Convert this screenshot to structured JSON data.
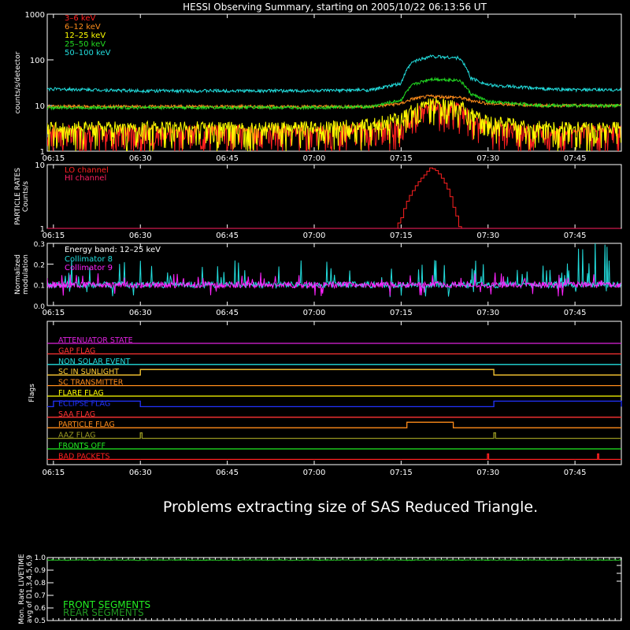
{
  "title": "HESSI Observing Summary, starting on 2005/10/22 06:13:56 UT",
  "time_ticks": [
    "06:15",
    "06:30",
    "06:45",
    "07:00",
    "07:15",
    "07:30",
    "07:45"
  ],
  "message": "Problems extracting size of SAS Reduced Triangle.",
  "chart_data": [
    {
      "type": "line",
      "panel": "lightcurves",
      "ylabel": "counts/s/detector",
      "yscale": "log",
      "ylim": [
        1,
        1000
      ],
      "ytick_labels": [
        "1",
        "10",
        "100",
        "1000"
      ],
      "x": [
        "06:15",
        "06:30",
        "06:45",
        "07:00",
        "07:10",
        "07:15",
        "07:17",
        "07:20",
        "07:25",
        "07:27",
        "07:30",
        "07:40",
        "07:45",
        "07:52"
      ],
      "series": [
        {
          "name": "3–6 keV",
          "color": "#ff2020",
          "values": [
            2.5,
            2.5,
            2.5,
            2.5,
            2.8,
            3.5,
            5.5,
            9,
            8,
            5,
            3,
            2.5,
            2.5,
            2.5
          ]
        },
        {
          "name": "6–12 keV",
          "color": "#ff8c1a",
          "values": [
            9.5,
            9.5,
            9.5,
            9.5,
            9.5,
            11,
            14,
            16,
            15,
            13,
            11,
            10,
            10,
            10
          ]
        },
        {
          "name": "12–25 keV",
          "color": "#ffff00",
          "values": [
            3,
            3,
            3,
            3,
            3.5,
            5,
            8,
            10,
            9,
            6,
            4,
            3,
            3,
            3
          ]
        },
        {
          "name": "25–50 keV",
          "color": "#22dd22",
          "values": [
            9,
            9,
            9,
            9,
            9.5,
            13,
            28,
            38,
            36,
            18,
            12,
            10,
            10,
            10
          ]
        },
        {
          "name": "50–100 keV",
          "color": "#22dddd",
          "values": [
            23,
            21,
            21,
            21,
            22,
            30,
            90,
            120,
            110,
            40,
            28,
            23,
            22,
            22
          ]
        }
      ]
    },
    {
      "type": "line",
      "panel": "particle_rates",
      "ylabel": "PARTICLE RATES\nCounts/s",
      "yscale": "log",
      "ylim": [
        1,
        10
      ],
      "ytick_labels": [
        "1",
        "10"
      ],
      "x": [
        "06:15",
        "07:14",
        "07:15",
        "07:17",
        "07:19",
        "07:20",
        "07:21",
        "07:23",
        "07:24",
        "07:25",
        "07:52"
      ],
      "series": [
        {
          "name": "LO channel",
          "color": "#ff2020",
          "values": [
            1,
            1,
            1.5,
            4,
            7,
            9,
            8,
            4,
            2,
            1,
            1
          ]
        },
        {
          "name": "HI channel",
          "color": "#ff2060",
          "values": [
            1,
            1,
            1,
            1,
            1,
            1,
            1,
            1,
            1,
            1,
            1
          ]
        }
      ]
    },
    {
      "type": "line",
      "panel": "modulation",
      "ylabel": "Normalized\nmodulation",
      "ylim": [
        0,
        0.3
      ],
      "ytick_labels": [
        "0.0",
        "0.1",
        "0.2",
        "0.3"
      ],
      "annotation": "Energy band: 12–25 keV",
      "series": [
        {
          "name": "Collimator 8",
          "color": "#22dddd",
          "typical": 0.1
        },
        {
          "name": "Collimator 9",
          "color": "#ff22ff",
          "typical": 0.1
        }
      ]
    },
    {
      "type": "line",
      "panel": "flags",
      "ylabel": "Flags",
      "series": [
        {
          "name": "ATTENUATOR STATE",
          "color": "#dd22dd",
          "intervals": []
        },
        {
          "name": "GAP FLAG",
          "color": "#ff3333",
          "intervals": []
        },
        {
          "name": "NON SOLAR EVENT",
          "color": "#22dddd",
          "intervals": []
        },
        {
          "name": "SC IN SUNLIGHT",
          "color": "#ffcc33",
          "intervals": [
            [
              "06:30",
              "07:31"
            ]
          ]
        },
        {
          "name": "SC TRANSMITTER",
          "color": "#ff8c1a",
          "intervals": []
        },
        {
          "name": "FLARE FLAG",
          "color": "#ffff00",
          "intervals": []
        },
        {
          "name": "ECLIPSE FLAG",
          "color": "#2233ff",
          "intervals": [
            [
              "06:15",
              "06:30"
            ],
            [
              "07:31",
              "07:53"
            ]
          ]
        },
        {
          "name": "SAA FLAG",
          "color": "#ff3333",
          "intervals": []
        },
        {
          "name": "PARTICLE FLAG",
          "color": "#ff8c1a",
          "intervals": [
            [
              "07:16",
              "07:24"
            ]
          ]
        },
        {
          "name": "AAZ FLAG",
          "color": "#999922",
          "intervals": [
            [
              "06:30",
              "06:30.3"
            ],
            [
              "07:31",
              "07:31.3"
            ]
          ]
        },
        {
          "name": "FRONTS OFF",
          "color": "#22ee22",
          "intervals": []
        },
        {
          "name": "BAD PACKETS",
          "color": "#ff2020",
          "intervals": [
            [
              "07:29.9",
              "07:30.1"
            ],
            [
              "07:48.9",
              "07:49.1"
            ]
          ]
        }
      ]
    },
    {
      "type": "line",
      "panel": "livetime",
      "ylabel": "Mon. Rate LIVETIME\navg of D1,3,4,5,6,9",
      "ylim": [
        0.5,
        1.0
      ],
      "ytick_labels": [
        "0.5",
        "0.6",
        "0.7",
        "0.8",
        "0.9",
        "1.0"
      ],
      "series": [
        {
          "name": "FRONT SEGMENTS",
          "color": "#22ee22",
          "typical": 0.98
        },
        {
          "name": "REAR SEGMENTS",
          "color": "#229922",
          "typical": 0.98
        }
      ]
    }
  ]
}
